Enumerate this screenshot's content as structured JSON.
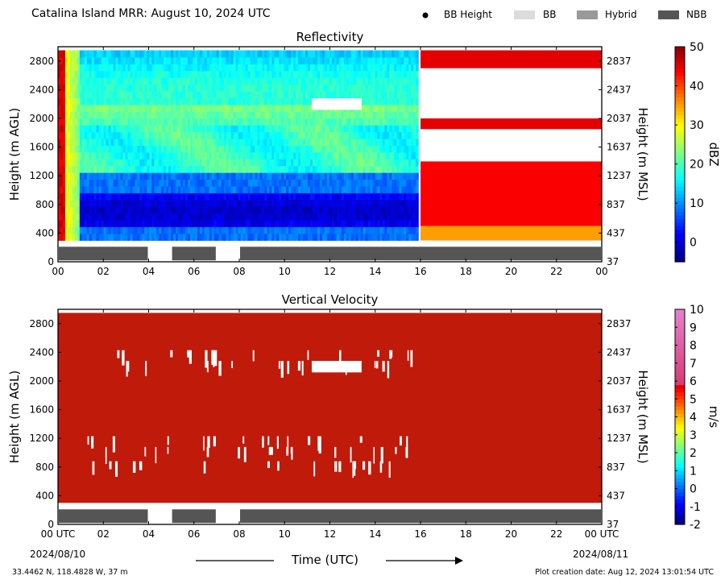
{
  "header": {
    "title": "Catalina Island MRR:  August 10, 2024 UTC",
    "legend": [
      {
        "label": "BB Height",
        "kind": "dot",
        "color": "#000000"
      },
      {
        "label": "BB",
        "kind": "swatch",
        "color": "#dcdcdc"
      },
      {
        "label": "Hybrid",
        "kind": "swatch",
        "color": "#999999"
      },
      {
        "label": "NBB",
        "kind": "swatch",
        "color": "#555555"
      }
    ]
  },
  "footer": {
    "location": "33.4462 N, 118.4828 W, 37 m",
    "creation": "Plot creation date: Aug 12, 2024 13:01:54 UTC",
    "xlabel": "Time (UTC)",
    "start_date": "2024/08/10",
    "end_date": "2024/08/11"
  },
  "chart_data": [
    {
      "type": "heatmap",
      "title": "Reflectivity",
      "ylabel": "Height (m AGL)",
      "ylabel_right": "Height (m MSL)",
      "xlim": [
        0,
        24
      ],
      "ylim": [
        0,
        3000
      ],
      "x_ticks": [
        "00",
        "02",
        "04",
        "06",
        "08",
        "10",
        "12",
        "14",
        "16",
        "18",
        "20",
        "22",
        "00"
      ],
      "y_ticks": [
        0,
        400,
        800,
        1200,
        1600,
        2000,
        2400,
        2800
      ],
      "y_ticks_right": [
        37,
        437,
        837,
        1237,
        1637,
        2037,
        2437,
        2837
      ],
      "colorbar": {
        "label": "dBZ",
        "ticks": [
          50,
          40,
          30,
          20,
          10,
          0
        ],
        "range": [
          -5,
          50
        ]
      },
      "nbb_segments": [
        [
          0,
          4
        ],
        [
          5,
          7
        ],
        [
          8,
          24
        ]
      ]
    },
    {
      "type": "heatmap",
      "title": "Vertical Velocity",
      "ylabel": "Height (m AGL)",
      "ylabel_right": "Height (m MSL)",
      "xlim": [
        0,
        24
      ],
      "ylim": [
        0,
        3000
      ],
      "x_ticks": [
        "00 UTC",
        "02",
        "04",
        "06",
        "08",
        "10",
        "12",
        "14",
        "16",
        "18",
        "20",
        "22",
        "00 UTC"
      ],
      "y_ticks": [
        0,
        400,
        800,
        1200,
        1600,
        2000,
        2400,
        2800
      ],
      "y_ticks_right": [
        37,
        437,
        837,
        1237,
        1637,
        2037,
        2437,
        2837
      ],
      "colorbar": {
        "label": "m/s",
        "ticks": [
          "10",
          "9",
          "8",
          "7",
          "6",
          "5",
          "4",
          "3",
          "2",
          "1",
          "0",
          "-1",
          "-2"
        ],
        "range": [
          -2,
          10
        ]
      },
      "nbb_segments": [
        [
          0,
          4
        ],
        [
          5,
          7
        ],
        [
          8,
          24
        ]
      ]
    }
  ]
}
